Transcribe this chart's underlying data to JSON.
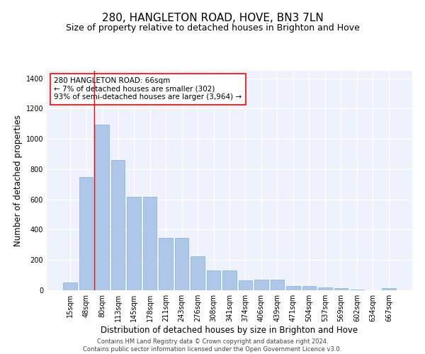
{
  "title": "280, HANGLETON ROAD, HOVE, BN3 7LN",
  "subtitle": "Size of property relative to detached houses in Brighton and Hove",
  "xlabel": "Distribution of detached houses by size in Brighton and Hove",
  "ylabel": "Number of detached properties",
  "footer_line1": "Contains HM Land Registry data © Crown copyright and database right 2024.",
  "footer_line2": "Contains public sector information licensed under the Open Government Licence v3.0.",
  "bar_labels": [
    "15sqm",
    "48sqm",
    "80sqm",
    "113sqm",
    "145sqm",
    "178sqm",
    "211sqm",
    "243sqm",
    "276sqm",
    "308sqm",
    "341sqm",
    "374sqm",
    "406sqm",
    "439sqm",
    "471sqm",
    "504sqm",
    "537sqm",
    "569sqm",
    "602sqm",
    "634sqm",
    "667sqm"
  ],
  "bar_heights": [
    50,
    750,
    1095,
    862,
    617,
    617,
    347,
    347,
    225,
    132,
    132,
    65,
    70,
    70,
    30,
    30,
    20,
    14,
    7,
    0,
    13
  ],
  "bar_color": "#aec6e8",
  "bar_edge_color": "#7fb3d8",
  "annotation_text_line1": "280 HANGLETON ROAD: 66sqm",
  "annotation_text_line2": "← 7% of detached houses are smaller (302)",
  "annotation_text_line3": "93% of semi-detached houses are larger (3,964) →",
  "red_line_x": 1.5,
  "ylim": [
    0,
    1450
  ],
  "yticks": [
    0,
    200,
    400,
    600,
    800,
    1000,
    1200,
    1400
  ],
  "background_color": "#eef2fc",
  "grid_color": "#ffffff",
  "title_fontsize": 11,
  "subtitle_fontsize": 9,
  "xlabel_fontsize": 8.5,
  "ylabel_fontsize": 8.5,
  "tick_fontsize": 7,
  "annotation_fontsize": 7.5,
  "footer_fontsize": 6
}
